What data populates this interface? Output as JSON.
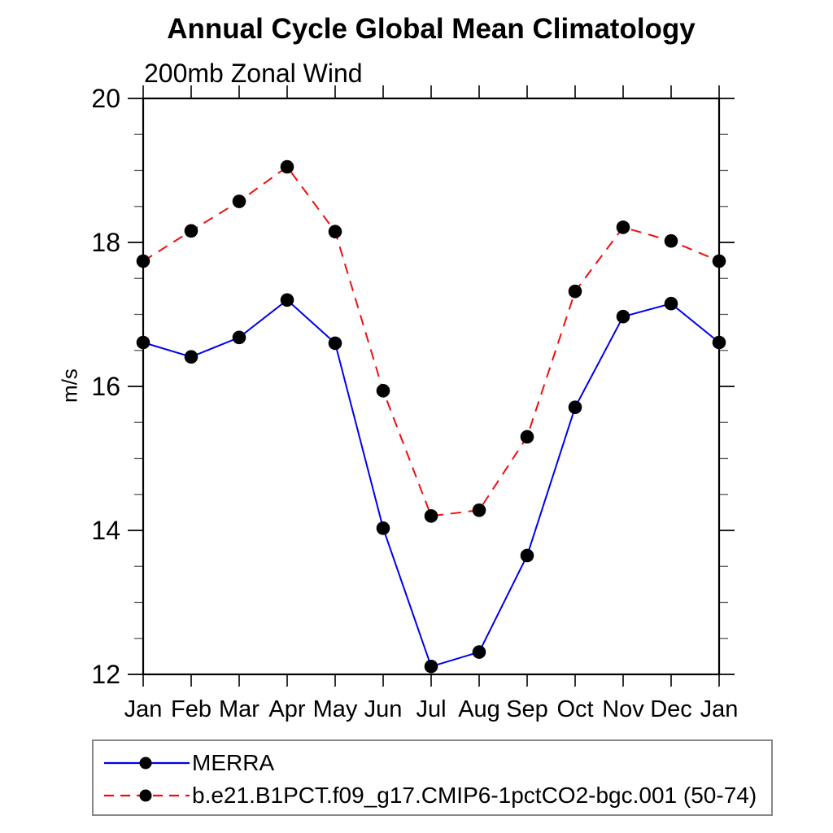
{
  "page": {
    "background": "#ffffff"
  },
  "chart_data": {
    "type": "line",
    "title": "Annual Cycle Global Mean Climatology",
    "subtitle": "200mb Zonal Wind",
    "xlabel": "",
    "ylabel": "m/s",
    "categories": [
      "Jan",
      "Feb",
      "Mar",
      "Apr",
      "May",
      "Jun",
      "Jul",
      "Aug",
      "Sep",
      "Oct",
      "Nov",
      "Dec",
      "Jan"
    ],
    "ylim": [
      12,
      20
    ],
    "ytick_major": [
      12,
      14,
      16,
      18,
      20
    ],
    "ytick_minor_step": 0.5,
    "grid": false,
    "legend_position": "bottom-left",
    "axis_color": "#000000",
    "marker_color": "#000000",
    "marker_shape": "filled-circle",
    "series": [
      {
        "name": "MERRA",
        "color": "#0000ee",
        "style": "solid",
        "values": [
          16.61,
          16.41,
          16.68,
          17.2,
          16.6,
          14.03,
          12.11,
          12.31,
          13.65,
          15.71,
          16.97,
          17.15,
          16.61
        ]
      },
      {
        "name": "b.e21.B1PCT.f09_g17.CMIP6-1pctCO2-bgc.001 (50-74)",
        "color": "#f20d0d",
        "style": "dashed",
        "values": [
          17.74,
          18.16,
          18.57,
          19.05,
          18.15,
          15.94,
          14.2,
          14.28,
          15.3,
          17.32,
          18.21,
          18.02,
          17.74
        ]
      }
    ]
  }
}
